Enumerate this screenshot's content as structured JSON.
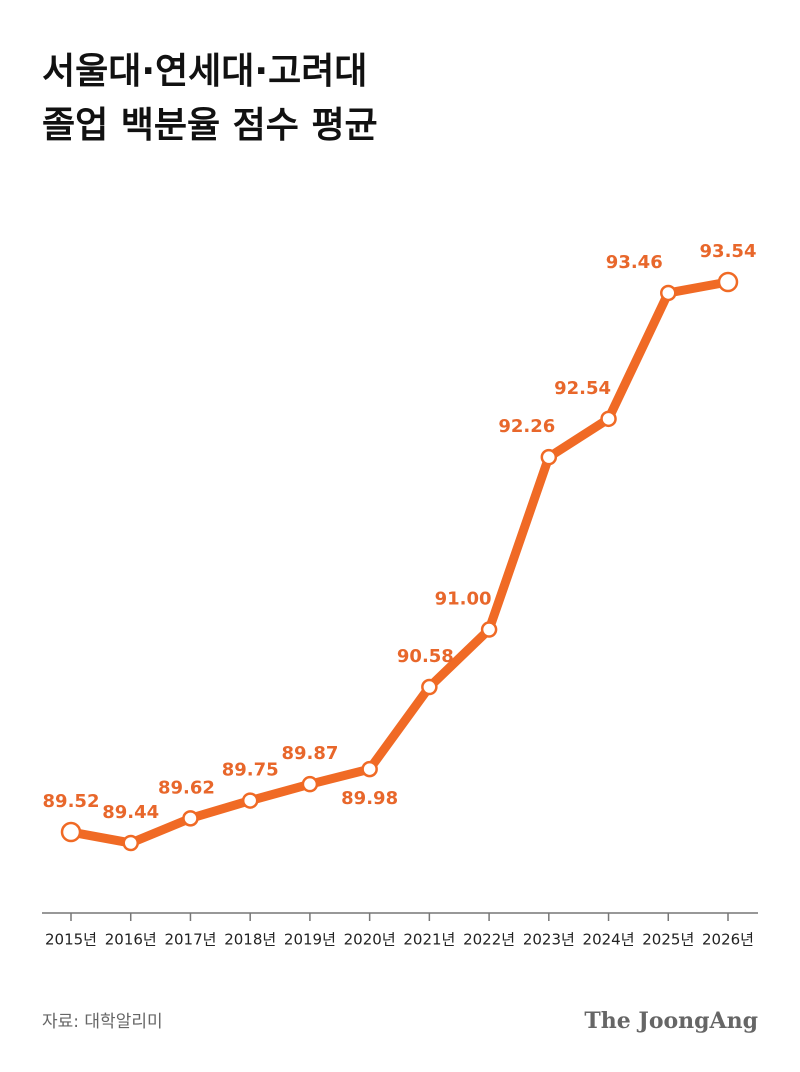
{
  "chart_data": {
    "type": "line",
    "title": [
      "서울대·연세대·고려대",
      "졸업 백분율 점수 평균"
    ],
    "categories": [
      "2015년",
      "2016년",
      "2017년",
      "2018년",
      "2019년",
      "2020년",
      "2021년",
      "2022년",
      "2023년",
      "2024년",
      "2025년",
      "2026년"
    ],
    "series": [
      {
        "color": "#f06a25",
        "values": [
          89.52,
          89.44,
          89.62,
          89.75,
          89.87,
          89.98,
          90.58,
          91.0,
          92.26,
          92.54,
          93.46,
          93.54
        ],
        "value_labels": [
          "89.52",
          "89.44",
          "89.62",
          "89.75",
          "89.87",
          "89.98",
          "90.58",
          "91.00",
          "92.26",
          "92.54",
          "93.46",
          "93.54"
        ]
      }
    ],
    "source": "자료: 대학알리미",
    "brand": "The JoongAng"
  }
}
